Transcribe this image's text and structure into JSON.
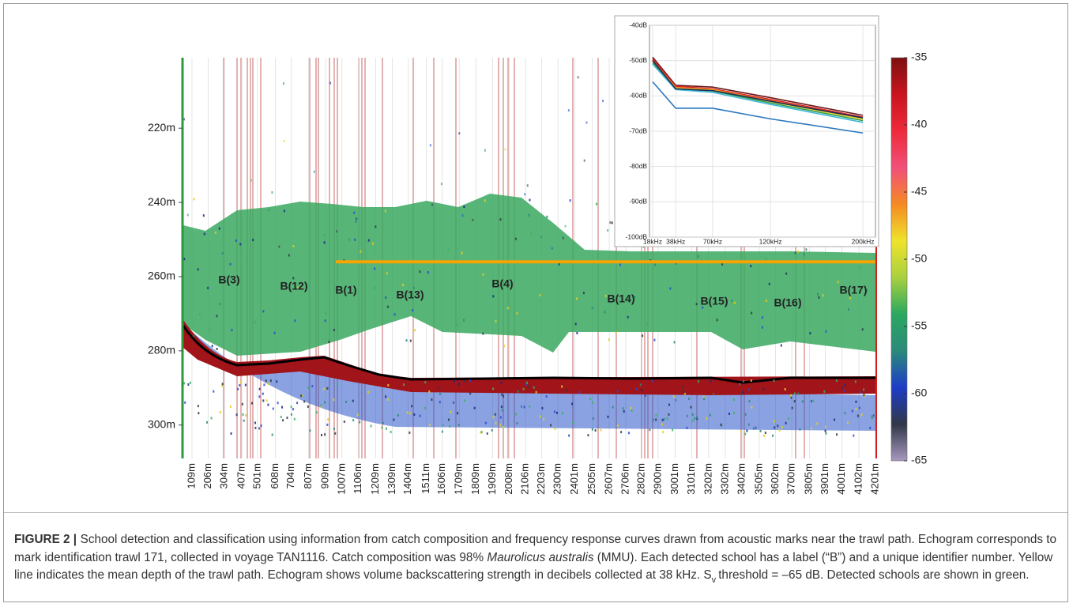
{
  "echogram": {
    "ylim": [
      201,
      309
    ],
    "yticks": [
      {
        "value": 220,
        "label": "220m"
      },
      {
        "value": 240,
        "label": "240m"
      },
      {
        "value": 260,
        "label": "260m"
      },
      {
        "value": 280,
        "label": "280m"
      },
      {
        "value": 300,
        "label": "300m"
      }
    ],
    "xlim": [
      109,
      4201
    ],
    "xticks": [
      {
        "value": 109,
        "label": "109m"
      },
      {
        "value": 206,
        "label": "206m"
      },
      {
        "value": 304,
        "label": "304m"
      },
      {
        "value": 407,
        "label": "407m"
      },
      {
        "value": 501,
        "label": "501m"
      },
      {
        "value": 608,
        "label": "608m"
      },
      {
        "value": 704,
        "label": "704m"
      },
      {
        "value": 807,
        "label": "807m"
      },
      {
        "value": 909,
        "label": "909m"
      },
      {
        "value": 1007,
        "label": "1007m"
      },
      {
        "value": 1106,
        "label": "1106m"
      },
      {
        "value": 1209,
        "label": "1209m"
      },
      {
        "value": 1309,
        "label": "1309m"
      },
      {
        "value": 1404,
        "label": "1404m"
      },
      {
        "value": 1511,
        "label": "1511m"
      },
      {
        "value": 1606,
        "label": "1606m"
      },
      {
        "value": 1709,
        "label": "1709m"
      },
      {
        "value": 1809,
        "label": "1809m"
      },
      {
        "value": 1909,
        "label": "1909m"
      },
      {
        "value": 2008,
        "label": "2008m"
      },
      {
        "value": 2106,
        "label": "2106m"
      },
      {
        "value": 2203,
        "label": "2203m"
      },
      {
        "value": 2300,
        "label": "2300m"
      },
      {
        "value": 2401,
        "label": "2401m"
      },
      {
        "value": 2505,
        "label": "2505m"
      },
      {
        "value": 2607,
        "label": "2607m"
      },
      {
        "value": 2706,
        "label": "2706m"
      },
      {
        "value": 2802,
        "label": "2802m"
      },
      {
        "value": 2900,
        "label": "2900m"
      },
      {
        "value": 3001,
        "label": "3001m"
      },
      {
        "value": 3101,
        "label": "3101m"
      },
      {
        "value": 3202,
        "label": "3202m"
      },
      {
        "value": 3302,
        "label": "3302m"
      },
      {
        "value": 3402,
        "label": "3402m"
      },
      {
        "value": 3505,
        "label": "3505m"
      },
      {
        "value": 3602,
        "label": "3602m"
      },
      {
        "value": 3700,
        "label": "3700m"
      },
      {
        "value": 3805,
        "label": "3805m"
      },
      {
        "value": 3901,
        "label": "3901m"
      },
      {
        "value": 4001,
        "label": "4001m"
      },
      {
        "value": 4102,
        "label": "4102m"
      },
      {
        "value": 4201,
        "label": "4201m"
      }
    ],
    "schools": [
      "B(3)",
      "B(12)",
      "B(1)",
      "B(13)",
      "B(4)",
      "B(14)",
      "B(15)",
      "B(16)",
      "B(17)"
    ],
    "trawl_mean_depth": 256,
    "trawl_line_color": "#f5a400"
  },
  "colorbar": {
    "lim": [
      -65,
      -35
    ],
    "ticks": [
      -35,
      -40,
      -45,
      -50,
      -55,
      -60,
      -65
    ],
    "colors": [
      "#7d1010",
      "#c8141e",
      "#ee2a3a",
      "#f0507a",
      "#f58a24",
      "#efe32a",
      "#a8d040",
      "#2aa860",
      "#2a8a7a",
      "#1e3cc8",
      "#303848",
      "#a898c0"
    ]
  },
  "chart_data": {
    "type": "line",
    "x": [
      18,
      38,
      70,
      120,
      200
    ],
    "xlim": [
      15.3,
      210.9
    ],
    "xticks": [
      {
        "value": 18,
        "label": "18kHz"
      },
      {
        "value": 38,
        "label": "38kHz"
      },
      {
        "value": 70,
        "label": "70kHz"
      },
      {
        "value": 120,
        "label": "120kHz"
      },
      {
        "value": 200,
        "label": "200kHz"
      }
    ],
    "ylim": [
      -100,
      -40
    ],
    "yticks": [
      {
        "value": -40,
        "label": "-40dB"
      },
      {
        "value": -50,
        "label": "-50dB"
      },
      {
        "value": -60,
        "label": "-60dB"
      },
      {
        "value": -70,
        "label": "-70dB"
      },
      {
        "value": -80,
        "label": "-80dB"
      },
      {
        "value": -90,
        "label": "-90dB"
      },
      {
        "value": -100,
        "label": "-100dB"
      }
    ],
    "grid": true,
    "series": [
      {
        "color": "#6b1a1a",
        "values": [
          -49,
          -57,
          -57.5,
          -60.5,
          -65.5
        ]
      },
      {
        "color": "#e02020",
        "values": [
          -49.5,
          -57.3,
          -58,
          -61,
          -66
        ]
      },
      {
        "color": "#f08020",
        "values": [
          -50,
          -57.6,
          -58.2,
          -61.3,
          -66.3
        ]
      },
      {
        "color": "#e8d020",
        "values": [
          -50.3,
          -57.8,
          -58.4,
          -61.6,
          -66.6
        ]
      },
      {
        "color": "#30a050",
        "values": [
          -50.6,
          -58,
          -58.6,
          -62,
          -67
        ]
      },
      {
        "color": "#40b8d8",
        "values": [
          -51,
          -58.2,
          -59,
          -62.4,
          -67.5
        ]
      },
      {
        "color": "#1c2a5a",
        "values": [
          -50,
          -58,
          -58.5,
          -61.5,
          -66.2
        ]
      },
      {
        "color": "#2a78c0",
        "values": [
          -56,
          -63.5,
          -63.5,
          -66.5,
          -70.5
        ]
      }
    ]
  },
  "caption": {
    "label": "FIGURE 2 |",
    "text1": "School detection and classification using information from catch composition and frequency response curves drawn from acoustic marks near the trawl path. Echogram corresponds to mark identification trawl 171, collected in voyage TAN1116. Catch composition was 98%",
    "species": "Maurolicus australis",
    "text2": "(MMU). Each detected school has a label (“B”) and a unique identifier number. Yellow line indicates the mean depth of the trawl path. Echogram shows volume backscattering strength in decibels collected at 38 kHz. S",
    "subscript": "v",
    "text3": "threshold = –65 dB. Detected schools are shown in green."
  }
}
